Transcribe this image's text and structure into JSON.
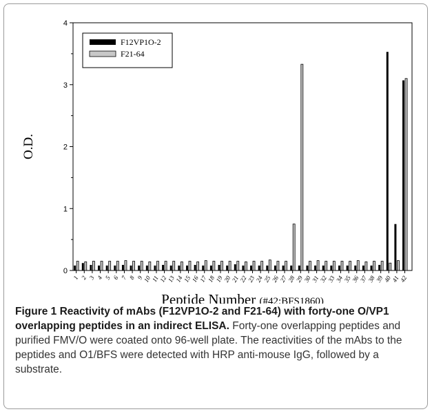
{
  "chart_data": {
    "type": "bar",
    "xlabel": "Peptide Number",
    "xlabel_note": "(#42:BFS1860)",
    "ylabel": "O.D.",
    "ylim": [
      0,
      4
    ],
    "yticks": [
      "0",
      "1",
      "2",
      "3",
      "4"
    ],
    "grid": false,
    "legend_position": "top-left",
    "categories": [
      "1",
      "2",
      "3",
      "4",
      "5",
      "6",
      "7",
      "8",
      "9",
      "10",
      "11",
      "12",
      "13",
      "14",
      "15",
      "16",
      "17",
      "18",
      "19",
      "20",
      "21",
      "22",
      "23",
      "24",
      "25",
      "26",
      "27",
      "28",
      "29",
      "30",
      "31",
      "32",
      "33",
      "34",
      "35",
      "36",
      "37",
      "38",
      "39",
      "40",
      "41",
      "42"
    ],
    "series": [
      {
        "name": "F12VP1O-2",
        "color": "#000000",
        "values": [
          0.08,
          0.12,
          0.09,
          0.08,
          0.08,
          0.08,
          0.09,
          0.08,
          0.08,
          0.08,
          0.08,
          0.09,
          0.08,
          0.08,
          0.08,
          0.09,
          0.08,
          0.08,
          0.09,
          0.08,
          0.1,
          0.08,
          0.08,
          0.08,
          0.08,
          0.08,
          0.08,
          0.08,
          0.08,
          0.08,
          0.08,
          0.08,
          0.08,
          0.08,
          0.08,
          0.08,
          0.08,
          0.08,
          0.09,
          3.53,
          0.75,
          3.07
        ]
      },
      {
        "name": "F21-64",
        "color": "#c8c8c8",
        "values": [
          0.15,
          0.14,
          0.15,
          0.15,
          0.15,
          0.15,
          0.16,
          0.15,
          0.15,
          0.14,
          0.15,
          0.15,
          0.15,
          0.14,
          0.15,
          0.14,
          0.16,
          0.15,
          0.15,
          0.15,
          0.15,
          0.14,
          0.15,
          0.15,
          0.17,
          0.15,
          0.15,
          0.75,
          3.33,
          0.15,
          0.16,
          0.15,
          0.15,
          0.15,
          0.15,
          0.16,
          0.14,
          0.15,
          0.15,
          0.12,
          0.16,
          3.1
        ]
      }
    ]
  },
  "caption": {
    "lead": "Figure 1 Reactivity of mAbs (F12VP1O-2 and F21-64) with forty-one O/VP1 overlapping peptides in an indirect ELISA.",
    "body": " Forty-one overlapping peptides and purified FMV/O were coated onto 96-well plate. The reactivities of the mAbs to the peptides and O1/BFS were detected with HRP anti-mouse IgG, followed by a substrate."
  }
}
